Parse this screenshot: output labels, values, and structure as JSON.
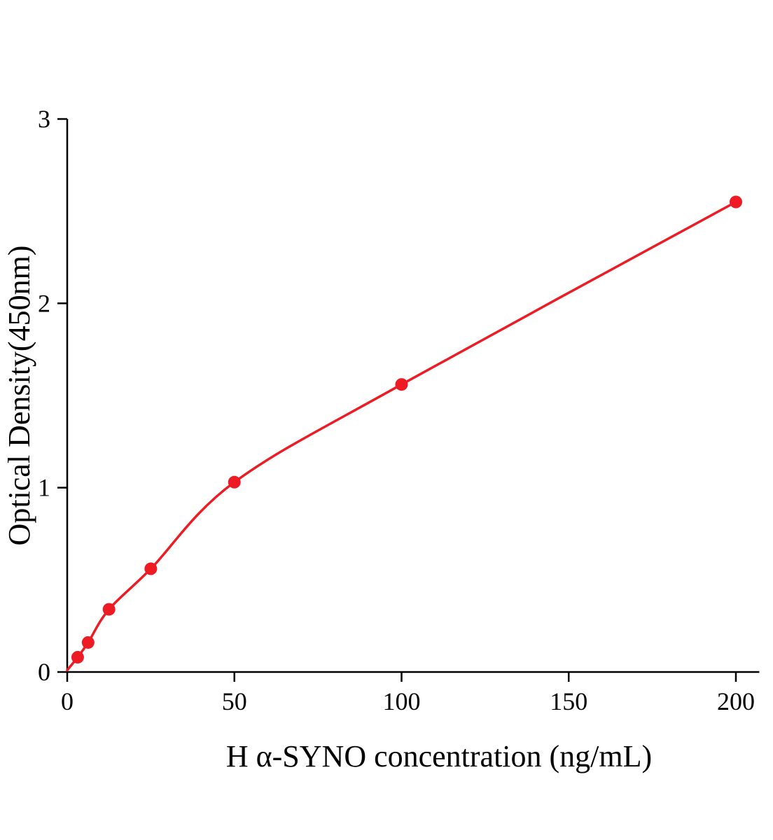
{
  "chart_data": {
    "type": "scatter",
    "title": "",
    "xlabel": "H α-SYNO concentration (ng/mL)",
    "ylabel": "Optical Density(450nm)",
    "x": [
      3.125,
      6.25,
      12.5,
      25,
      50,
      100,
      200
    ],
    "y": [
      0.08,
      0.16,
      0.34,
      0.56,
      1.03,
      1.56,
      2.55
    ],
    "curve_start": {
      "x": 0,
      "y": 0.01
    },
    "xlim": [
      0,
      207
    ],
    "ylim": [
      0,
      3
    ],
    "x_ticks": [
      0,
      50,
      100,
      150,
      200
    ],
    "y_ticks": [
      0,
      1,
      2,
      3
    ],
    "point_color": "#ed1c24",
    "line_color": "#ed1c24",
    "axis_color": "#000000",
    "grid": false,
    "legend": "none"
  }
}
